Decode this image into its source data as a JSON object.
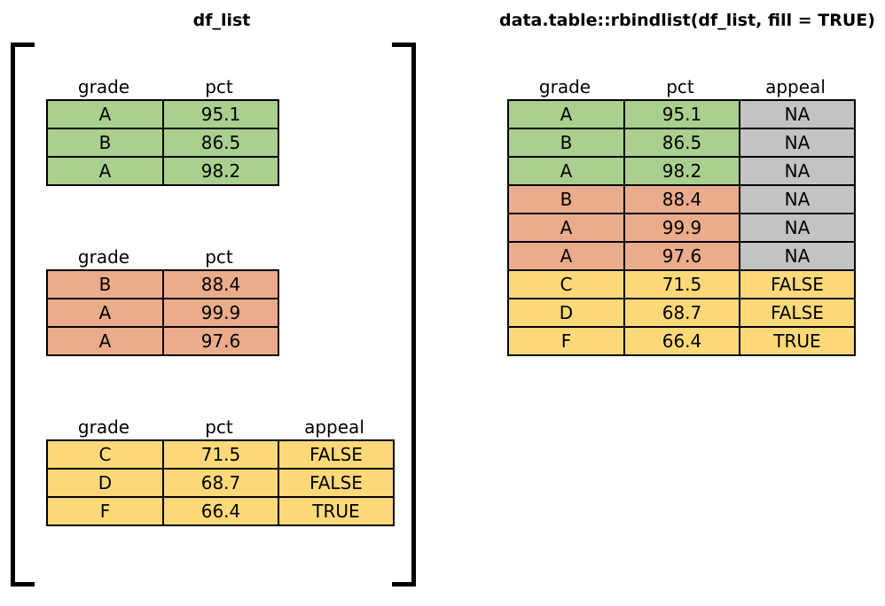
{
  "left_title": "df_list",
  "right_title": "data.table::rbindlist(df_list, fill = TRUE)",
  "colors": {
    "df1": "#a9d08e",
    "df2": "#eaac8b",
    "df3": "#fdd97a",
    "na": "#c3c3c3"
  },
  "df_list": [
    {
      "columns": [
        "grade",
        "pct"
      ],
      "rows": [
        [
          "A",
          "95.1"
        ],
        [
          "B",
          "86.5"
        ],
        [
          "A",
          "98.2"
        ]
      ]
    },
    {
      "columns": [
        "grade",
        "pct"
      ],
      "rows": [
        [
          "B",
          "88.4"
        ],
        [
          "A",
          "99.9"
        ],
        [
          "A",
          "97.6"
        ]
      ]
    },
    {
      "columns": [
        "grade",
        "pct",
        "appeal"
      ],
      "rows": [
        [
          "C",
          "71.5",
          "FALSE"
        ],
        [
          "D",
          "68.7",
          "FALSE"
        ],
        [
          "F",
          "66.4",
          "TRUE"
        ]
      ]
    }
  ],
  "result": {
    "columns": [
      "grade",
      "pct",
      "appeal"
    ],
    "rows": [
      [
        "A",
        "95.1",
        "NA"
      ],
      [
        "B",
        "86.5",
        "NA"
      ],
      [
        "A",
        "98.2",
        "NA"
      ],
      [
        "B",
        "88.4",
        "NA"
      ],
      [
        "A",
        "99.9",
        "NA"
      ],
      [
        "A",
        "97.6",
        "NA"
      ],
      [
        "C",
        "71.5",
        "FALSE"
      ],
      [
        "D",
        "68.7",
        "FALSE"
      ],
      [
        "F",
        "66.4",
        "TRUE"
      ]
    ],
    "row_source": [
      "green",
      "green",
      "green",
      "salmon",
      "salmon",
      "salmon",
      "yellow",
      "yellow",
      "yellow"
    ]
  }
}
